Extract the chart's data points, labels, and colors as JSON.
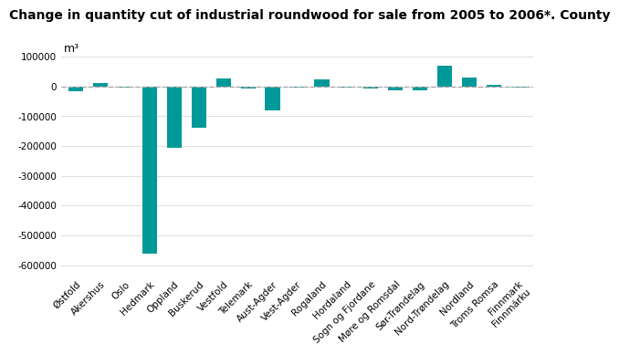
{
  "title": "Change in quantity cut of industrial roundwood for sale from 2005 to 2006*. County",
  "ylabel": "m³",
  "categories": [
    "Østfold",
    "Akershus",
    "Oslo",
    "Hedmark",
    "Oppland",
    "Buskerud",
    "Vestfold",
    "Telemark",
    "Aust-Agder",
    "Vest-Agder",
    "Rogaland",
    "Hordaland",
    "Sogn og Fjordane",
    "Møre og Romsdal",
    "Sør-Trøndelag",
    "Nord-Trøndelag",
    "Nordland",
    "Troms Romsa",
    "Finnmark\nFinnmárku"
  ],
  "values": [
    -15000,
    13000,
    -3000,
    -560000,
    -205000,
    -140000,
    28000,
    -8000,
    -80000,
    -4000,
    25000,
    -3000,
    -8000,
    -12000,
    -13000,
    70000,
    30000,
    4000,
    -3000
  ],
  "bar_color": "#009999",
  "dashed_line_color": "#aaaaaa",
  "background_color": "#ffffff",
  "grid_color": "#dddddd",
  "ylim": [
    -640000,
    140000
  ],
  "yticks": [
    -600000,
    -500000,
    -400000,
    -300000,
    -200000,
    -100000,
    0,
    100000
  ],
  "title_fontsize": 10,
  "tick_fontsize": 7.5
}
